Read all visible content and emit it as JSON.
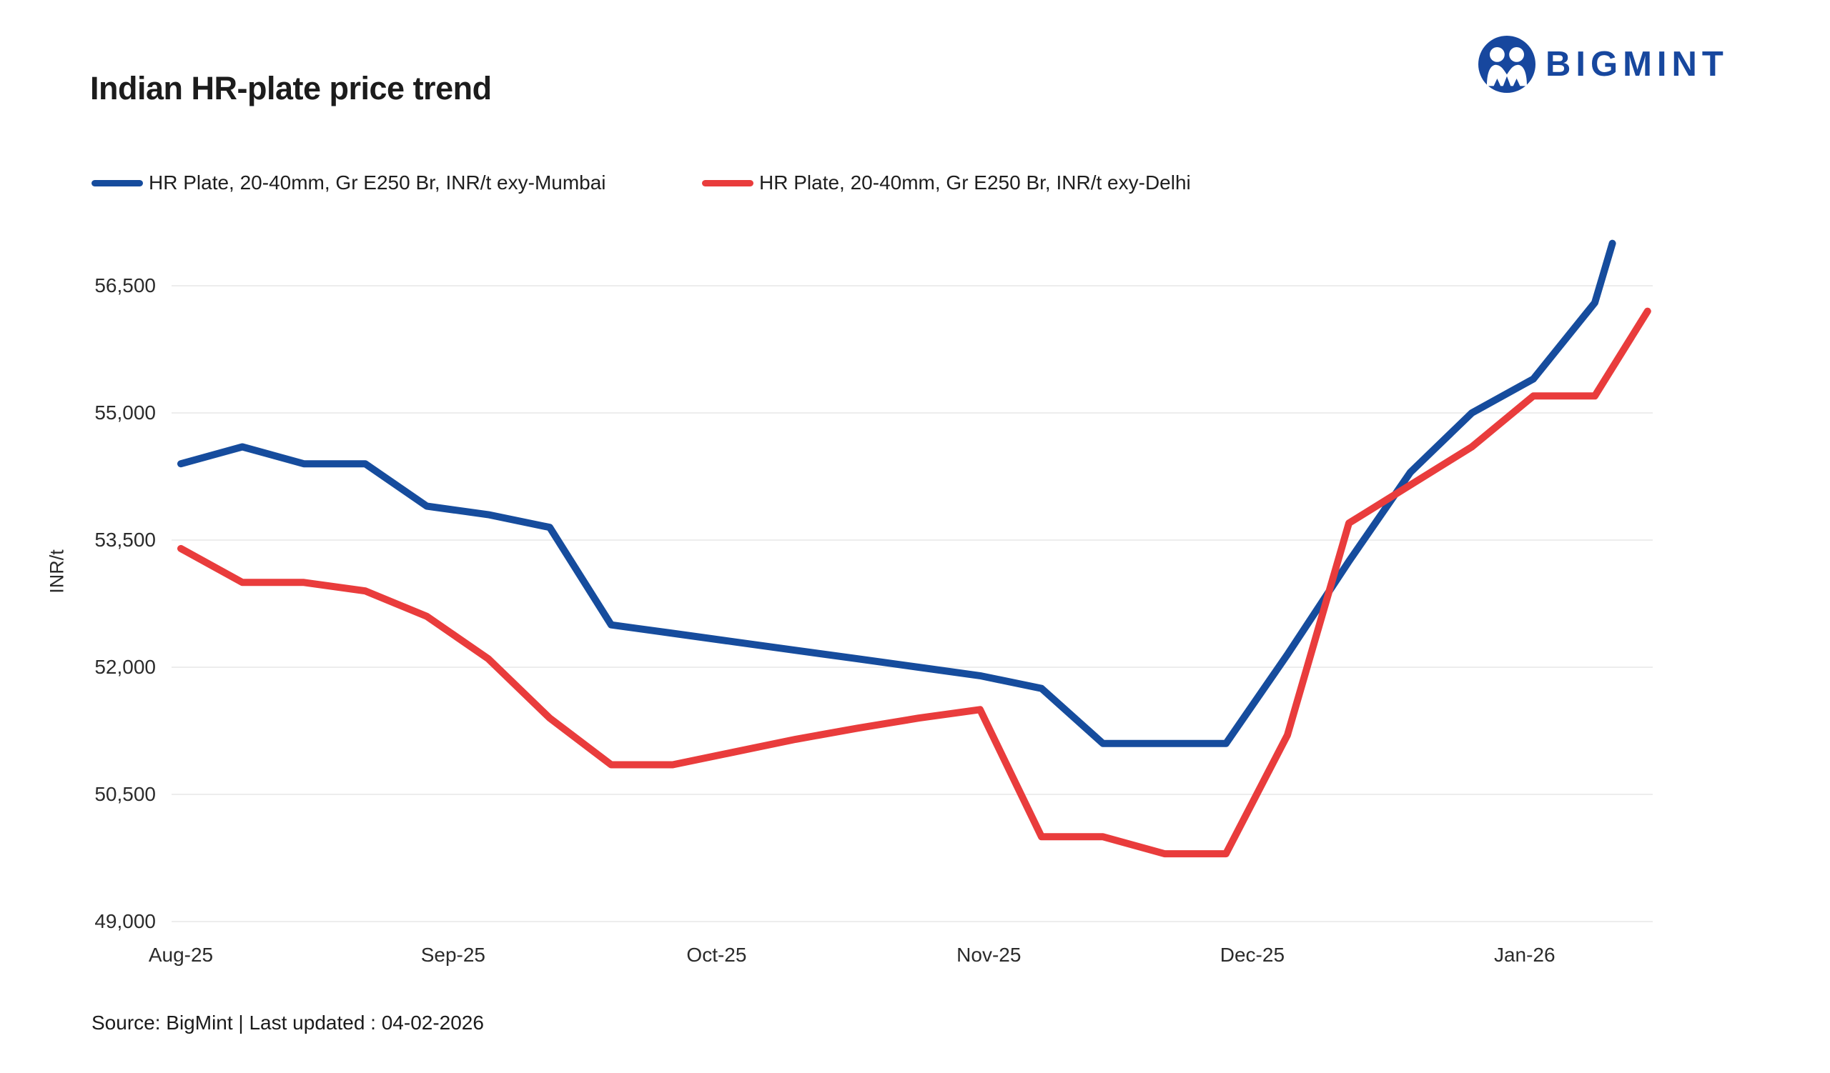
{
  "header": {
    "title": "Indian HR-plate price trend",
    "logo_text": "BIGMINT",
    "logo_color": "#17479e"
  },
  "chart_data": {
    "type": "line",
    "title": "Indian HR-plate price trend",
    "xlabel": "",
    "ylabel": "INR/t",
    "ylim": [
      49000,
      56500
    ],
    "grid": "horizontal-only",
    "legend_position": "top-left",
    "yticks": [
      {
        "value": 49000,
        "label": "49,000"
      },
      {
        "value": 50500,
        "label": "50,500"
      },
      {
        "value": 52000,
        "label": "52,000"
      },
      {
        "value": 53500,
        "label": "53,500"
      },
      {
        "value": 55000,
        "label": "55,000"
      },
      {
        "value": 56500,
        "label": "56,500"
      }
    ],
    "xticks": [
      {
        "day": 0,
        "label": "Aug-25"
      },
      {
        "day": 31,
        "label": "Sep-25"
      },
      {
        "day": 61,
        "label": "Oct-25"
      },
      {
        "day": 92,
        "label": "Nov-25"
      },
      {
        "day": 122,
        "label": "Dec-25"
      },
      {
        "day": 153,
        "label": "Jan-26"
      }
    ],
    "x_axis_note": "weekly data points; day offsets measured from first point at Aug-25 tick; values estimated from gridlines",
    "series": [
      {
        "name": "HR Plate, 20-40mm, Gr E250 Br, INR/t exy-Mumbai",
        "color": "#164c9d",
        "points": [
          [
            0,
            54400
          ],
          [
            7,
            54600
          ],
          [
            14,
            54400
          ],
          [
            21,
            54400
          ],
          [
            28,
            53900
          ],
          [
            35,
            53800
          ],
          [
            42,
            53650
          ],
          [
            49,
            52500
          ],
          [
            56,
            52400
          ],
          [
            63,
            52300
          ],
          [
            70,
            52200
          ],
          [
            77,
            52100
          ],
          [
            84,
            52000
          ],
          [
            91,
            51900
          ],
          [
            98,
            51750
          ],
          [
            105,
            51100
          ],
          [
            112,
            51100
          ],
          [
            119,
            51100
          ],
          [
            126,
            52150
          ],
          [
            133,
            53250
          ],
          [
            140,
            54300
          ],
          [
            147,
            55000
          ],
          [
            154,
            55400
          ],
          [
            161,
            56300
          ],
          [
            163,
            57000
          ]
        ]
      },
      {
        "name": "HR Plate, 20-40mm, Gr E250 Br, INR/t exy-Delhi",
        "color": "#e93c3c",
        "points": [
          [
            0,
            53400
          ],
          [
            7,
            53000
          ],
          [
            14,
            53000
          ],
          [
            21,
            52900
          ],
          [
            28,
            52600
          ],
          [
            35,
            52100
          ],
          [
            42,
            51400
          ],
          [
            49,
            50850
          ],
          [
            56,
            50850
          ],
          [
            63,
            51000
          ],
          [
            70,
            51150
          ],
          [
            77,
            51280
          ],
          [
            84,
            51400
          ],
          [
            91,
            51500
          ],
          [
            98,
            50000
          ],
          [
            105,
            50000
          ],
          [
            112,
            49800
          ],
          [
            119,
            49800
          ],
          [
            126,
            51200
          ],
          [
            133,
            53700
          ],
          [
            140,
            54150
          ],
          [
            147,
            54600
          ],
          [
            154,
            55200
          ],
          [
            161,
            55200
          ],
          [
            167,
            56200
          ]
        ]
      }
    ]
  },
  "footer": {
    "source": "Source: BigMint | Last updated : 04-02-2026"
  }
}
